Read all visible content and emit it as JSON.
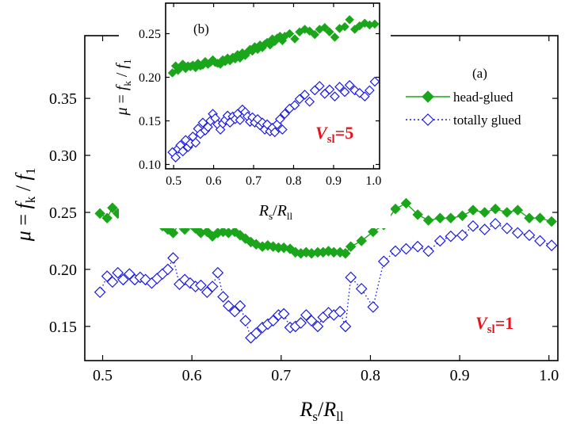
{
  "colors": {
    "head_glued": "#1aa51a",
    "totally_glued": "#1a1ae6",
    "vsl_text": "#e8141c"
  },
  "labels": {
    "y_main_mu": "μ",
    "y_main_eq": " = ",
    "y_main_f": "f",
    "y_main_k": "k",
    "y_main_slash": " / ",
    "y_main_f1": "f",
    "y_main_1": "1",
    "x_R": "R",
    "x_s": "s",
    "x_slash": "/",
    "x_R2": "R",
    "x_ll": "ll",
    "panel_a": "(a)",
    "panel_b": "(b)",
    "vsl_main_V": "V",
    "vsl_main_sub": "sl",
    "vsl_main_val": "=1",
    "vsl_inset_V": "V",
    "vsl_inset_sub": "sl",
    "vsl_inset_val": "=5"
  },
  "chart_data": [
    {
      "type": "scatter",
      "panel": "(a)",
      "xlim": [
        0.48,
        1.01
      ],
      "ylim": [
        0.12,
        0.405
      ],
      "xticks": [
        0.5,
        0.6,
        0.7,
        0.8,
        0.9,
        1.0
      ],
      "xtick_labels": [
        "0.5",
        "0.6",
        "0.7",
        "0.8",
        "0.9",
        "1.0"
      ],
      "yticks": [
        0.15,
        0.2,
        0.25,
        0.3,
        0.35
      ],
      "ytick_labels": [
        "0.15",
        "0.20",
        "0.25",
        "0.30",
        "0.35"
      ],
      "legend": {
        "placement": "right",
        "entries": [
          "head-glued",
          "totally glued"
        ]
      },
      "series": [
        {
          "name": "head-glued",
          "marker": "diamond-filled",
          "line": "solid",
          "x": [
            0.497,
            0.505,
            0.511,
            0.517,
            0.523,
            0.53,
            0.536,
            0.542,
            0.548,
            0.555,
            0.561,
            0.567,
            0.573,
            0.579,
            0.586,
            0.592,
            0.598,
            0.604,
            0.61,
            0.617,
            0.623,
            0.629,
            0.635,
            0.641,
            0.648,
            0.654,
            0.66,
            0.666,
            0.672,
            0.679,
            0.685,
            0.691,
            0.697,
            0.703,
            0.71,
            0.716,
            0.722,
            0.728,
            0.734,
            0.741,
            0.747,
            0.753,
            0.759,
            0.766,
            0.772,
            0.778,
            0.79,
            0.803,
            0.815,
            0.828,
            0.84,
            0.853,
            0.865,
            0.878,
            0.89,
            0.903,
            0.915,
            0.928,
            0.94,
            0.953,
            0.965,
            0.978,
            0.99,
            1.003
          ],
          "y": [
            0.249,
            0.245,
            0.254,
            0.249,
            0.25,
            0.248,
            0.251,
            0.244,
            0.241,
            0.245,
            0.247,
            0.238,
            0.235,
            0.232,
            0.24,
            0.235,
            0.24,
            0.236,
            0.232,
            0.233,
            0.229,
            0.232,
            0.233,
            0.232,
            0.233,
            0.23,
            0.227,
            0.224,
            0.222,
            0.22,
            0.221,
            0.22,
            0.219,
            0.219,
            0.218,
            0.215,
            0.214,
            0.215,
            0.214,
            0.215,
            0.215,
            0.216,
            0.215,
            0.215,
            0.214,
            0.22,
            0.225,
            0.233,
            0.239,
            0.253,
            0.258,
            0.248,
            0.243,
            0.245,
            0.245,
            0.247,
            0.252,
            0.25,
            0.253,
            0.25,
            0.252,
            0.245,
            0.245,
            0.242
          ]
        },
        {
          "name": "totally glued",
          "marker": "diamond-open",
          "line": "dotted",
          "x": [
            0.497,
            0.505,
            0.511,
            0.517,
            0.523,
            0.53,
            0.536,
            0.542,
            0.548,
            0.555,
            0.561,
            0.567,
            0.573,
            0.579,
            0.586,
            0.592,
            0.598,
            0.604,
            0.61,
            0.617,
            0.623,
            0.629,
            0.635,
            0.641,
            0.648,
            0.654,
            0.66,
            0.666,
            0.672,
            0.679,
            0.685,
            0.691,
            0.697,
            0.703,
            0.71,
            0.716,
            0.722,
            0.728,
            0.734,
            0.741,
            0.747,
            0.753,
            0.759,
            0.766,
            0.772,
            0.778,
            0.79,
            0.803,
            0.815,
            0.828,
            0.84,
            0.853,
            0.865,
            0.878,
            0.89,
            0.903,
            0.915,
            0.928,
            0.94,
            0.953,
            0.965,
            0.978,
            0.99,
            1.003
          ],
          "y": [
            0.18,
            0.194,
            0.189,
            0.197,
            0.191,
            0.196,
            0.191,
            0.193,
            0.191,
            0.188,
            0.192,
            0.196,
            0.2,
            0.21,
            0.187,
            0.191,
            0.188,
            0.185,
            0.186,
            0.18,
            0.185,
            0.197,
            0.176,
            0.168,
            0.163,
            0.168,
            0.155,
            0.14,
            0.144,
            0.149,
            0.152,
            0.155,
            0.16,
            0.161,
            0.149,
            0.15,
            0.153,
            0.16,
            0.155,
            0.15,
            0.158,
            0.162,
            0.16,
            0.163,
            0.15,
            0.193,
            0.183,
            0.167,
            0.207,
            0.216,
            0.218,
            0.22,
            0.216,
            0.225,
            0.229,
            0.23,
            0.238,
            0.235,
            0.24,
            0.236,
            0.232,
            0.23,
            0.225,
            0.221
          ]
        }
      ]
    },
    {
      "type": "scatter",
      "panel": "(b)",
      "xlim": [
        0.48,
        1.015
      ],
      "ylim": [
        0.095,
        0.285
      ],
      "xticks": [
        0.5,
        0.6,
        0.7,
        0.8,
        0.9,
        1.0
      ],
      "xtick_labels": [
        "0.5",
        "0.6",
        "0.7",
        "0.8",
        "0.9",
        "1.0"
      ],
      "yticks": [
        0.1,
        0.15,
        0.2,
        0.25
      ],
      "ytick_labels": [
        "0.10",
        "0.15",
        "0.20",
        "0.25"
      ],
      "series": [
        {
          "name": "head-glued",
          "marker": "diamond-filled",
          "x": [
            0.497,
            0.505,
            0.511,
            0.517,
            0.523,
            0.53,
            0.536,
            0.542,
            0.548,
            0.555,
            0.561,
            0.567,
            0.573,
            0.579,
            0.586,
            0.592,
            0.598,
            0.604,
            0.61,
            0.617,
            0.623,
            0.629,
            0.635,
            0.641,
            0.648,
            0.654,
            0.66,
            0.666,
            0.672,
            0.679,
            0.685,
            0.691,
            0.697,
            0.703,
            0.71,
            0.716,
            0.722,
            0.728,
            0.734,
            0.741,
            0.747,
            0.753,
            0.759,
            0.766,
            0.772,
            0.778,
            0.79,
            0.803,
            0.815,
            0.828,
            0.84,
            0.853,
            0.865,
            0.878,
            0.89,
            0.903,
            0.915,
            0.928,
            0.94,
            0.953,
            0.965,
            0.978,
            0.99,
            1.003
          ],
          "y": [
            0.205,
            0.213,
            0.208,
            0.212,
            0.215,
            0.21,
            0.213,
            0.212,
            0.214,
            0.211,
            0.216,
            0.213,
            0.214,
            0.218,
            0.215,
            0.217,
            0.22,
            0.217,
            0.216,
            0.215,
            0.22,
            0.218,
            0.222,
            0.219,
            0.223,
            0.221,
            0.226,
            0.222,
            0.228,
            0.225,
            0.229,
            0.232,
            0.23,
            0.235,
            0.232,
            0.237,
            0.234,
            0.238,
            0.24,
            0.237,
            0.244,
            0.241,
            0.245,
            0.247,
            0.242,
            0.247,
            0.25,
            0.244,
            0.252,
            0.255,
            0.253,
            0.249,
            0.255,
            0.257,
            0.252,
            0.246,
            0.256,
            0.258,
            0.266,
            0.255,
            0.259,
            0.262,
            0.26,
            0.261
          ]
        },
        {
          "name": "totally glued",
          "marker": "diamond-open",
          "x": [
            0.497,
            0.505,
            0.511,
            0.517,
            0.523,
            0.53,
            0.536,
            0.542,
            0.548,
            0.555,
            0.561,
            0.567,
            0.573,
            0.579,
            0.586,
            0.592,
            0.598,
            0.604,
            0.61,
            0.617,
            0.623,
            0.629,
            0.635,
            0.641,
            0.648,
            0.654,
            0.66,
            0.666,
            0.672,
            0.679,
            0.685,
            0.691,
            0.697,
            0.703,
            0.71,
            0.716,
            0.722,
            0.728,
            0.734,
            0.741,
            0.747,
            0.753,
            0.759,
            0.766,
            0.772,
            0.778,
            0.79,
            0.803,
            0.815,
            0.828,
            0.84,
            0.853,
            0.865,
            0.878,
            0.89,
            0.903,
            0.915,
            0.928,
            0.94,
            0.953,
            0.965,
            0.978,
            0.99,
            1.003
          ],
          "y": [
            0.114,
            0.108,
            0.118,
            0.122,
            0.115,
            0.128,
            0.12,
            0.124,
            0.132,
            0.125,
            0.141,
            0.135,
            0.148,
            0.139,
            0.143,
            0.15,
            0.158,
            0.153,
            0.146,
            0.14,
            0.147,
            0.151,
            0.156,
            0.148,
            0.155,
            0.152,
            0.158,
            0.151,
            0.163,
            0.16,
            0.155,
            0.149,
            0.154,
            0.148,
            0.152,
            0.145,
            0.148,
            0.14,
            0.146,
            0.138,
            0.142,
            0.137,
            0.146,
            0.152,
            0.14,
            0.158,
            0.164,
            0.168,
            0.175,
            0.18,
            0.172,
            0.185,
            0.19,
            0.181,
            0.186,
            0.178,
            0.189,
            0.183,
            0.191,
            0.185,
            0.182,
            0.178,
            0.185,
            0.195
          ]
        }
      ]
    }
  ]
}
